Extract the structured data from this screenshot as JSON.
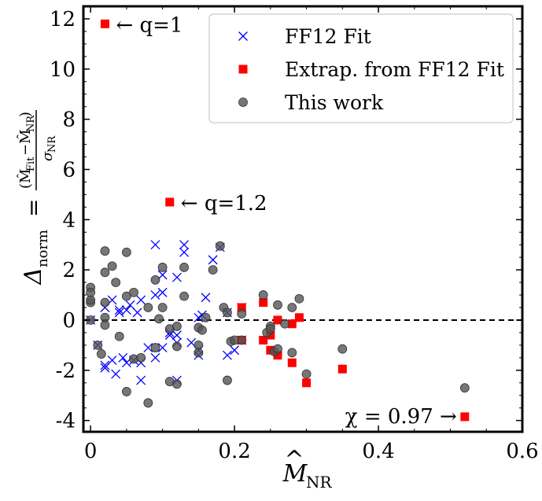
{
  "chart_data": {
    "type": "scatter",
    "xlabel": "M̂NR",
    "ylabel": "Δnorm = (M̂Fit−M̂NR)/σNR",
    "xlim": [
      -0.01,
      0.6
    ],
    "ylim": [
      -4.45,
      12.5
    ],
    "xticks": [
      0,
      0.2,
      0.4,
      0.6
    ],
    "xtick_labels": [
      "0",
      "0.2",
      "0.4",
      "0.6"
    ],
    "yticks": [
      -4,
      -2,
      0,
      2,
      4,
      6,
      8,
      10,
      12
    ],
    "ytick_labels": [
      "-4",
      "-2",
      "0",
      "2",
      "4",
      "6",
      "8",
      "10",
      "12"
    ],
    "reference_line": {
      "y": 0,
      "style": "dashed"
    },
    "legend_position": "top-right",
    "colors": {
      "ff12": "#0000ff",
      "extrap": "#ff0000",
      "thiswork": "#555555"
    },
    "series": [
      {
        "name": "FF12 Fit",
        "marker": "x",
        "points": [
          [
            0.0,
            0.0
          ],
          [
            0.01,
            -1.0
          ],
          [
            0.02,
            -1.8
          ],
          [
            0.02,
            -1.9
          ],
          [
            0.02,
            0.5
          ],
          [
            0.03,
            -1.6
          ],
          [
            0.03,
            0.8
          ],
          [
            0.035,
            -2.15
          ],
          [
            0.04,
            0.4
          ],
          [
            0.04,
            0.3
          ],
          [
            0.045,
            -1.5
          ],
          [
            0.05,
            0.4
          ],
          [
            0.05,
            -1.7
          ],
          [
            0.055,
            0.6
          ],
          [
            0.06,
            -1.6
          ],
          [
            0.065,
            0.3
          ],
          [
            0.07,
            -1.7
          ],
          [
            0.07,
            0.8
          ],
          [
            0.07,
            -2.4
          ],
          [
            0.08,
            -1.1
          ],
          [
            0.09,
            -1.5
          ],
          [
            0.09,
            1.0
          ],
          [
            0.09,
            3.0
          ],
          [
            0.1,
            1.1
          ],
          [
            0.1,
            1.8
          ],
          [
            0.1,
            -1.1
          ],
          [
            0.11,
            -0.5
          ],
          [
            0.11,
            -0.6
          ],
          [
            0.12,
            -0.9
          ],
          [
            0.12,
            -2.4
          ],
          [
            0.12,
            1.7
          ],
          [
            0.12,
            -0.6
          ],
          [
            0.13,
            2.7
          ],
          [
            0.13,
            3.0
          ],
          [
            0.14,
            -0.9
          ],
          [
            0.15,
            -1.4
          ],
          [
            0.15,
            -1.2
          ],
          [
            0.15,
            0.1
          ],
          [
            0.155,
            0.2
          ],
          [
            0.16,
            0.9
          ],
          [
            0.17,
            2.4
          ],
          [
            0.18,
            2.9
          ],
          [
            0.19,
            0.3
          ],
          [
            0.19,
            -1.4
          ],
          [
            0.2,
            -1.2
          ],
          [
            0.21,
            0.5
          ],
          [
            0.21,
            -0.8
          ]
        ]
      },
      {
        "name": "Extrap. from FF12 Fit",
        "marker": "s",
        "points": [
          [
            0.11,
            4.7
          ],
          [
            0.21,
            0.5
          ],
          [
            0.21,
            -0.8
          ],
          [
            0.24,
            0.7
          ],
          [
            0.24,
            -0.8
          ],
          [
            0.25,
            -0.6
          ],
          [
            0.25,
            -1.2
          ],
          [
            0.26,
            0.0
          ],
          [
            0.26,
            -1.4
          ],
          [
            0.28,
            -0.15
          ],
          [
            0.28,
            -1.7
          ],
          [
            0.29,
            0.1
          ],
          [
            0.3,
            -2.5
          ],
          [
            0.35,
            -1.95
          ],
          [
            0.52,
            -3.85
          ],
          [
            0.02,
            11.8
          ]
        ]
      },
      {
        "name": "This work",
        "marker": "o",
        "points": [
          [
            0.0,
            0.0
          ],
          [
            0.0,
            1.3
          ],
          [
            0.0,
            0.7
          ],
          [
            0.0,
            0.8
          ],
          [
            0.0,
            1.1
          ],
          [
            0.01,
            -1.0
          ],
          [
            0.015,
            -1.35
          ],
          [
            0.02,
            2.75
          ],
          [
            0.02,
            1.9
          ],
          [
            0.02,
            0.7
          ],
          [
            0.02,
            -0.2
          ],
          [
            0.02,
            0.1
          ],
          [
            0.03,
            2.15
          ],
          [
            0.035,
            1.5
          ],
          [
            0.04,
            -0.65
          ],
          [
            0.05,
            2.7
          ],
          [
            0.05,
            0.95
          ],
          [
            0.05,
            -2.85
          ],
          [
            0.06,
            1.1
          ],
          [
            0.06,
            -1.55
          ],
          [
            0.07,
            -1.5
          ],
          [
            0.08,
            -3.3
          ],
          [
            0.08,
            0.5
          ],
          [
            0.09,
            1.6
          ],
          [
            0.09,
            -1.1
          ],
          [
            0.095,
            0.05
          ],
          [
            0.1,
            2.1
          ],
          [
            0.1,
            0.5
          ],
          [
            0.11,
            -0.35
          ],
          [
            0.11,
            -2.45
          ],
          [
            0.12,
            -0.25
          ],
          [
            0.12,
            -2.55
          ],
          [
            0.12,
            -1.05
          ],
          [
            0.13,
            2.1
          ],
          [
            0.13,
            0.95
          ],
          [
            0.15,
            -1.0
          ],
          [
            0.15,
            -0.3
          ],
          [
            0.15,
            -1.3
          ],
          [
            0.155,
            -0.4
          ],
          [
            0.16,
            0.1
          ],
          [
            0.17,
            2.0
          ],
          [
            0.18,
            2.95
          ],
          [
            0.185,
            0.5
          ],
          [
            0.19,
            0.3
          ],
          [
            0.19,
            -2.4
          ],
          [
            0.195,
            -0.85
          ],
          [
            0.2,
            -0.8
          ],
          [
            0.21,
            0.25
          ],
          [
            0.21,
            -0.8
          ],
          [
            0.24,
            1.0
          ],
          [
            0.245,
            -0.5
          ],
          [
            0.25,
            -0.25
          ],
          [
            0.25,
            -0.35
          ],
          [
            0.255,
            -1.25
          ],
          [
            0.26,
            -1.15
          ],
          [
            0.26,
            0.6
          ],
          [
            0.27,
            -0.15
          ],
          [
            0.28,
            0.5
          ],
          [
            0.28,
            -1.3
          ],
          [
            0.29,
            0.85
          ],
          [
            0.3,
            -2.15
          ],
          [
            0.35,
            -1.15
          ],
          [
            0.52,
            -2.7
          ]
        ]
      }
    ],
    "annotations": [
      {
        "text": "← q=1",
        "x": 0.02,
        "y": 11.8
      },
      {
        "text": "← q=1.2",
        "x": 0.11,
        "y": 4.7
      },
      {
        "text": "χ = 0.97 →",
        "x": 0.52,
        "y": -3.85
      }
    ]
  }
}
